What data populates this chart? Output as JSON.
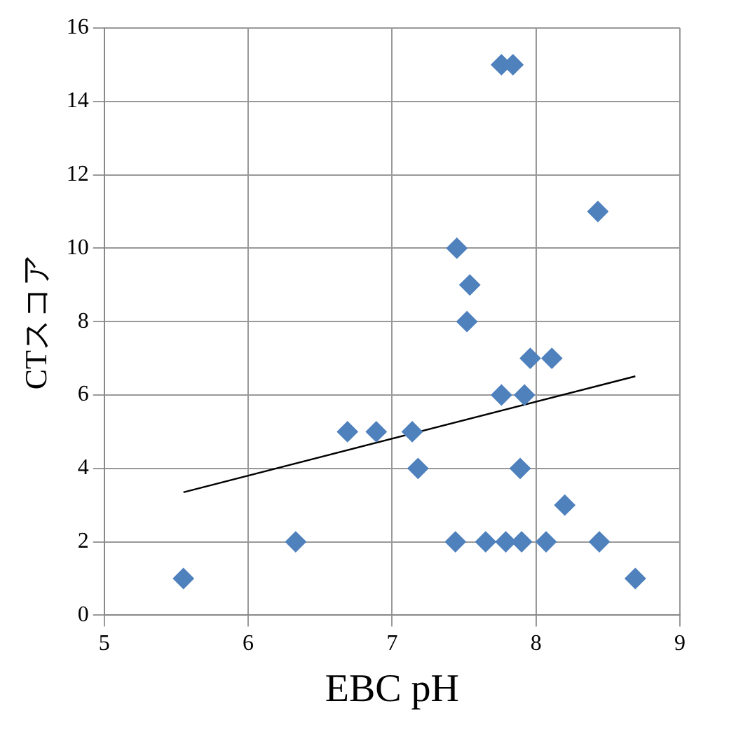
{
  "chart_data": {
    "type": "scatter",
    "xlabel": "EBC pH",
    "ylabel": "CTスコア",
    "xlim": [
      5,
      9
    ],
    "xticks": [
      5,
      6,
      7,
      8,
      9
    ],
    "ylim": [
      0,
      16
    ],
    "yticks": [
      0,
      2,
      4,
      6,
      8,
      10,
      12,
      14,
      16
    ],
    "grid": true,
    "legend": false,
    "marker": "diamond",
    "series": [
      {
        "color": "#4f81bd",
        "x": [
          5.55,
          6.33,
          6.69,
          6.89,
          7.14,
          7.18,
          7.45,
          7.54,
          7.52,
          7.76,
          7.84,
          7.76,
          7.92,
          7.96,
          8.11,
          7.89,
          8.2,
          8.43,
          7.44,
          7.65,
          7.79,
          7.9,
          8.07,
          8.44,
          8.69
        ],
        "values": [
          1,
          2,
          5,
          5,
          5,
          4,
          10,
          9,
          8,
          15,
          15,
          6,
          6,
          7,
          7,
          4,
          3,
          11,
          2,
          2,
          2,
          2,
          2,
          2,
          1
        ]
      },
      {
        "type": "line",
        "color": "#000000",
        "x": [
          5.55,
          8.69
        ],
        "values": [
          3.35,
          6.51
        ],
        "marker": "none"
      }
    ]
  }
}
